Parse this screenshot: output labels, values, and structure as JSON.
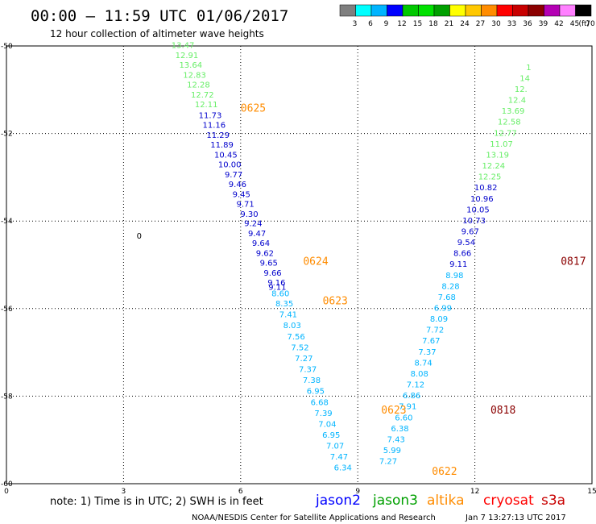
{
  "header": {
    "title": "00:00 – 11:59 UTC 01/06/2017",
    "subtitle": "12 hour collection of altimeter wave heights"
  },
  "legend_scale": {
    "labels": [
      "3",
      "6",
      "9",
      "12",
      "15",
      "18",
      "21",
      "24",
      "27",
      "30",
      "33",
      "36",
      "39",
      "42",
      "45",
      "70",
      "(ft)"
    ],
    "colors": [
      "#7f7f7f",
      "#00ffff",
      "#00b4ff",
      "#0000ff",
      "#00c800",
      "#00e100",
      "#00a000",
      "#ffff00",
      "#ffc800",
      "#ff8c00",
      "#ff0000",
      "#c80000",
      "#8b0000",
      "#b400b4",
      "#ff80ff",
      "#000000"
    ]
  },
  "footer": {
    "note": "note: 1) Time is in UTC; 2) SWH is in feet",
    "credit": "NOAA/NESDIS Center for Satellite Applications and Research",
    "timestamp": "Jan  7 13:27:13 UTC 2017"
  },
  "satellites": [
    {
      "name": "jason2",
      "color": "#0000ff"
    },
    {
      "name": "jason3",
      "color": "#00a000"
    },
    {
      "name": "altika",
      "color": "#ff8c00"
    },
    {
      "name": "cryosat",
      "color": "#ff0000"
    },
    {
      "name": "s3a",
      "color": "#c80000"
    }
  ],
  "chart_data": {
    "type": "scatter",
    "xlim": [
      0,
      15
    ],
    "ylim": [
      -60,
      -50
    ],
    "x_ticks": [
      "0",
      "3",
      "6",
      "9",
      "12",
      "15"
    ],
    "y_ticks": [
      "-50",
      "-52",
      "-54",
      "-56",
      "-58",
      "-60"
    ],
    "grid": true,
    "colors": {
      "light_green": "#66ee66",
      "light_blue": "#00b4ff",
      "blue": "#0000cc",
      "orange": "#ff8c00",
      "dark_red": "#8b0000"
    },
    "stray_label": {
      "text": "0",
      "x": 3.4,
      "y": -54.4
    },
    "time_labels": [
      {
        "text": "0625",
        "x": 6.0,
        "y": -51.5,
        "color": "#ff8c00"
      },
      {
        "text": "0624",
        "x": 7.6,
        "y": -55.0,
        "color": "#ff8c00"
      },
      {
        "text": "0623",
        "x": 8.1,
        "y": -55.9,
        "color": "#ff8c00"
      },
      {
        "text": "0623",
        "x": 9.6,
        "y": -58.4,
        "color": "#ff8c00"
      },
      {
        "text": "0622",
        "x": 10.9,
        "y": -59.8,
        "color": "#ff8c00"
      },
      {
        "text": "0817",
        "x": 14.2,
        "y": -55.0,
        "color": "#8b0000"
      },
      {
        "text": "0818",
        "x": 12.4,
        "y": -58.4,
        "color": "#8b0000"
      }
    ],
    "series": [
      {
        "color_key": "light_green",
        "points": [
          {
            "x": 4.52,
            "y": -50.05,
            "v": "13.47"
          },
          {
            "x": 4.62,
            "y": -50.28,
            "v": "12.91"
          },
          {
            "x": 4.72,
            "y": -50.5,
            "v": "13.64"
          },
          {
            "x": 4.82,
            "y": -50.73,
            "v": "12.83"
          },
          {
            "x": 4.92,
            "y": -50.95,
            "v": "12.28"
          },
          {
            "x": 5.02,
            "y": -51.18,
            "v": "12.72"
          },
          {
            "x": 5.12,
            "y": -51.4,
            "v": "12.11"
          }
        ]
      },
      {
        "color_key": "blue",
        "points": [
          {
            "x": 5.22,
            "y": -51.65,
            "v": "11.73"
          },
          {
            "x": 5.32,
            "y": -51.87,
            "v": "11.16"
          },
          {
            "x": 5.42,
            "y": -52.1,
            "v": "11.29"
          },
          {
            "x": 5.52,
            "y": -52.32,
            "v": "11.89"
          },
          {
            "x": 5.62,
            "y": -52.55,
            "v": "10.45"
          },
          {
            "x": 5.72,
            "y": -52.77,
            "v": "10.00"
          },
          {
            "x": 5.82,
            "y": -53.0,
            "v": "9.77"
          },
          {
            "x": 5.92,
            "y": -53.22,
            "v": "9.46"
          },
          {
            "x": 6.02,
            "y": -53.45,
            "v": "9.45"
          },
          {
            "x": 6.12,
            "y": -53.67,
            "v": "9.71"
          },
          {
            "x": 6.22,
            "y": -53.9,
            "v": "9.30"
          },
          {
            "x": 6.32,
            "y": -54.12,
            "v": "9.24"
          },
          {
            "x": 6.42,
            "y": -54.35,
            "v": "9.47"
          },
          {
            "x": 6.52,
            "y": -54.57,
            "v": "9.64"
          },
          {
            "x": 6.62,
            "y": -54.8,
            "v": "9.62"
          },
          {
            "x": 6.72,
            "y": -55.02,
            "v": "9.65"
          },
          {
            "x": 6.82,
            "y": -55.25,
            "v": "9.66"
          },
          {
            "x": 6.92,
            "y": -55.47,
            "v": "9.16"
          },
          {
            "x": 6.94,
            "y": -55.57,
            "v": "9.11"
          }
        ]
      },
      {
        "color_key": "light_blue",
        "points": [
          {
            "x": 7.02,
            "y": -55.72,
            "v": "8.60"
          },
          {
            "x": 7.12,
            "y": -55.95,
            "v": "8.35"
          },
          {
            "x": 7.22,
            "y": -56.2,
            "v": "7.41"
          },
          {
            "x": 7.32,
            "y": -56.45,
            "v": "8.03"
          },
          {
            "x": 7.42,
            "y": -56.7,
            "v": "7.56"
          },
          {
            "x": 7.52,
            "y": -56.95,
            "v": "7.52"
          },
          {
            "x": 7.62,
            "y": -57.2,
            "v": "7.27"
          },
          {
            "x": 7.72,
            "y": -57.45,
            "v": "7.37"
          },
          {
            "x": 7.82,
            "y": -57.7,
            "v": "7.38"
          },
          {
            "x": 7.92,
            "y": -57.95,
            "v": "6.95"
          },
          {
            "x": 8.02,
            "y": -58.2,
            "v": "6.68"
          },
          {
            "x": 8.12,
            "y": -58.45,
            "v": "7.39"
          },
          {
            "x": 8.22,
            "y": -58.7,
            "v": "7.04"
          },
          {
            "x": 8.32,
            "y": -58.95,
            "v": "6.95"
          },
          {
            "x": 8.42,
            "y": -59.2,
            "v": "7.07"
          },
          {
            "x": 8.52,
            "y": -59.45,
            "v": "7.47"
          },
          {
            "x": 8.62,
            "y": -59.7,
            "v": "6.34"
          }
        ]
      },
      {
        "color_key": "light_blue",
        "points": [
          {
            "x": 9.78,
            "y": -59.55,
            "v": "7.27"
          },
          {
            "x": 9.88,
            "y": -59.3,
            "v": "5.99"
          },
          {
            "x": 9.98,
            "y": -59.05,
            "v": "7.43"
          },
          {
            "x": 10.08,
            "y": -58.8,
            "v": "6.38"
          },
          {
            "x": 10.18,
            "y": -58.55,
            "v": "6.60"
          },
          {
            "x": 10.28,
            "y": -58.3,
            "v": "7.91"
          },
          {
            "x": 10.38,
            "y": -58.05,
            "v": "6.86"
          },
          {
            "x": 10.48,
            "y": -57.8,
            "v": "7.12"
          },
          {
            "x": 10.58,
            "y": -57.55,
            "v": "8.08"
          },
          {
            "x": 10.68,
            "y": -57.3,
            "v": "8.74"
          },
          {
            "x": 10.78,
            "y": -57.05,
            "v": "7.37"
          },
          {
            "x": 10.88,
            "y": -56.8,
            "v": "7.67"
          },
          {
            "x": 10.98,
            "y": -56.55,
            "v": "7.72"
          },
          {
            "x": 11.08,
            "y": -56.3,
            "v": "8.09"
          },
          {
            "x": 11.18,
            "y": -56.05,
            "v": "6.99"
          },
          {
            "x": 11.28,
            "y": -55.8,
            "v": "7.68"
          },
          {
            "x": 11.38,
            "y": -55.55,
            "v": "8.28"
          },
          {
            "x": 11.48,
            "y": -55.3,
            "v": "8.98"
          }
        ]
      },
      {
        "color_key": "blue",
        "points": [
          {
            "x": 11.58,
            "y": -55.05,
            "v": "9.11"
          },
          {
            "x": 11.68,
            "y": -54.8,
            "v": "8.66"
          },
          {
            "x": 11.78,
            "y": -54.55,
            "v": "9.54"
          },
          {
            "x": 11.88,
            "y": -54.3,
            "v": "9.67"
          },
          {
            "x": 11.98,
            "y": -54.05,
            "v": "10.73"
          },
          {
            "x": 12.08,
            "y": -53.8,
            "v": "10.05"
          },
          {
            "x": 12.18,
            "y": -53.55,
            "v": "10.96"
          },
          {
            "x": 12.28,
            "y": -53.3,
            "v": "10.82"
          }
        ]
      },
      {
        "color_key": "light_green",
        "points": [
          {
            "x": 12.38,
            "y": -53.05,
            "v": "12.25"
          },
          {
            "x": 12.48,
            "y": -52.8,
            "v": "12.24"
          },
          {
            "x": 12.58,
            "y": -52.55,
            "v": "13.19"
          },
          {
            "x": 12.68,
            "y": -52.3,
            "v": "11.07"
          },
          {
            "x": 12.78,
            "y": -52.05,
            "v": "12.77"
          },
          {
            "x": 12.88,
            "y": -51.8,
            "v": "12.58"
          },
          {
            "x": 12.98,
            "y": -51.55,
            "v": "13.69"
          },
          {
            "x": 13.08,
            "y": -51.3,
            "v": "12.4"
          },
          {
            "x": 13.18,
            "y": -51.05,
            "v": "12."
          },
          {
            "x": 13.28,
            "y": -50.8,
            "v": "14"
          },
          {
            "x": 13.38,
            "y": -50.55,
            "v": "1"
          }
        ]
      }
    ]
  }
}
